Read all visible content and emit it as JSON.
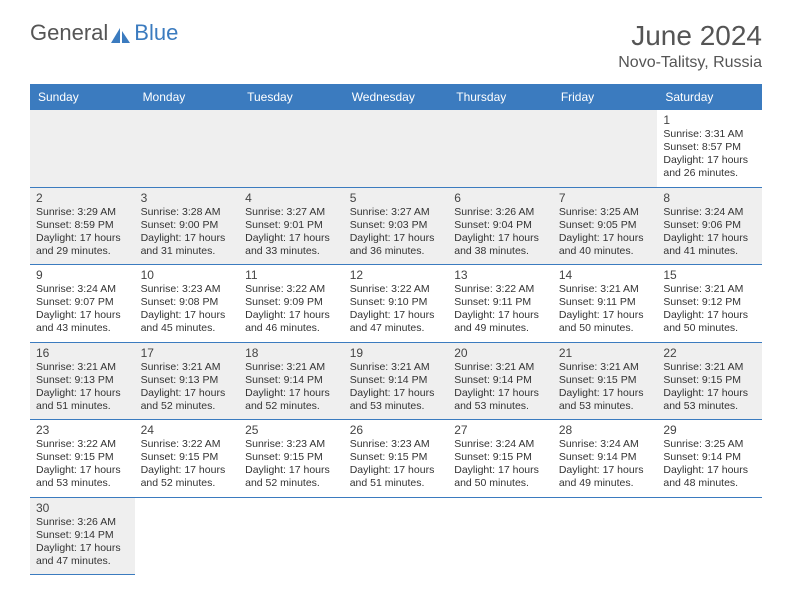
{
  "brand": {
    "part1": "General",
    "part2": "Blue"
  },
  "title": "June 2024",
  "location": "Novo-Talitsy, Russia",
  "colors": {
    "header_bg": "#3b7bbf",
    "header_text": "#ffffff",
    "shaded_bg": "#efefef",
    "border": "#3b7bbf",
    "text": "#333333"
  },
  "weekdays": [
    "Sunday",
    "Monday",
    "Tuesday",
    "Wednesday",
    "Thursday",
    "Friday",
    "Saturday"
  ],
  "weeks": [
    [
      {
        "empty": true
      },
      {
        "empty": true
      },
      {
        "empty": true
      },
      {
        "empty": true
      },
      {
        "empty": true
      },
      {
        "empty": true
      },
      {
        "day": "1",
        "sunrise": "Sunrise: 3:31 AM",
        "sunset": "Sunset: 8:57 PM",
        "d1": "Daylight: 17 hours",
        "d2": "and 26 minutes."
      }
    ],
    [
      {
        "day": "2",
        "shaded": true,
        "sunrise": "Sunrise: 3:29 AM",
        "sunset": "Sunset: 8:59 PM",
        "d1": "Daylight: 17 hours",
        "d2": "and 29 minutes."
      },
      {
        "day": "3",
        "shaded": true,
        "sunrise": "Sunrise: 3:28 AM",
        "sunset": "Sunset: 9:00 PM",
        "d1": "Daylight: 17 hours",
        "d2": "and 31 minutes."
      },
      {
        "day": "4",
        "shaded": true,
        "sunrise": "Sunrise: 3:27 AM",
        "sunset": "Sunset: 9:01 PM",
        "d1": "Daylight: 17 hours",
        "d2": "and 33 minutes."
      },
      {
        "day": "5",
        "shaded": true,
        "sunrise": "Sunrise: 3:27 AM",
        "sunset": "Sunset: 9:03 PM",
        "d1": "Daylight: 17 hours",
        "d2": "and 36 minutes."
      },
      {
        "day": "6",
        "shaded": true,
        "sunrise": "Sunrise: 3:26 AM",
        "sunset": "Sunset: 9:04 PM",
        "d1": "Daylight: 17 hours",
        "d2": "and 38 minutes."
      },
      {
        "day": "7",
        "shaded": true,
        "sunrise": "Sunrise: 3:25 AM",
        "sunset": "Sunset: 9:05 PM",
        "d1": "Daylight: 17 hours",
        "d2": "and 40 minutes."
      },
      {
        "day": "8",
        "shaded": true,
        "sunrise": "Sunrise: 3:24 AM",
        "sunset": "Sunset: 9:06 PM",
        "d1": "Daylight: 17 hours",
        "d2": "and 41 minutes."
      }
    ],
    [
      {
        "day": "9",
        "sunrise": "Sunrise: 3:24 AM",
        "sunset": "Sunset: 9:07 PM",
        "d1": "Daylight: 17 hours",
        "d2": "and 43 minutes."
      },
      {
        "day": "10",
        "sunrise": "Sunrise: 3:23 AM",
        "sunset": "Sunset: 9:08 PM",
        "d1": "Daylight: 17 hours",
        "d2": "and 45 minutes."
      },
      {
        "day": "11",
        "sunrise": "Sunrise: 3:22 AM",
        "sunset": "Sunset: 9:09 PM",
        "d1": "Daylight: 17 hours",
        "d2": "and 46 minutes."
      },
      {
        "day": "12",
        "sunrise": "Sunrise: 3:22 AM",
        "sunset": "Sunset: 9:10 PM",
        "d1": "Daylight: 17 hours",
        "d2": "and 47 minutes."
      },
      {
        "day": "13",
        "sunrise": "Sunrise: 3:22 AM",
        "sunset": "Sunset: 9:11 PM",
        "d1": "Daylight: 17 hours",
        "d2": "and 49 minutes."
      },
      {
        "day": "14",
        "sunrise": "Sunrise: 3:21 AM",
        "sunset": "Sunset: 9:11 PM",
        "d1": "Daylight: 17 hours",
        "d2": "and 50 minutes."
      },
      {
        "day": "15",
        "sunrise": "Sunrise: 3:21 AM",
        "sunset": "Sunset: 9:12 PM",
        "d1": "Daylight: 17 hours",
        "d2": "and 50 minutes."
      }
    ],
    [
      {
        "day": "16",
        "shaded": true,
        "sunrise": "Sunrise: 3:21 AM",
        "sunset": "Sunset: 9:13 PM",
        "d1": "Daylight: 17 hours",
        "d2": "and 51 minutes."
      },
      {
        "day": "17",
        "shaded": true,
        "sunrise": "Sunrise: 3:21 AM",
        "sunset": "Sunset: 9:13 PM",
        "d1": "Daylight: 17 hours",
        "d2": "and 52 minutes."
      },
      {
        "day": "18",
        "shaded": true,
        "sunrise": "Sunrise: 3:21 AM",
        "sunset": "Sunset: 9:14 PM",
        "d1": "Daylight: 17 hours",
        "d2": "and 52 minutes."
      },
      {
        "day": "19",
        "shaded": true,
        "sunrise": "Sunrise: 3:21 AM",
        "sunset": "Sunset: 9:14 PM",
        "d1": "Daylight: 17 hours",
        "d2": "and 53 minutes."
      },
      {
        "day": "20",
        "shaded": true,
        "sunrise": "Sunrise: 3:21 AM",
        "sunset": "Sunset: 9:14 PM",
        "d1": "Daylight: 17 hours",
        "d2": "and 53 minutes."
      },
      {
        "day": "21",
        "shaded": true,
        "sunrise": "Sunrise: 3:21 AM",
        "sunset": "Sunset: 9:15 PM",
        "d1": "Daylight: 17 hours",
        "d2": "and 53 minutes."
      },
      {
        "day": "22",
        "shaded": true,
        "sunrise": "Sunrise: 3:21 AM",
        "sunset": "Sunset: 9:15 PM",
        "d1": "Daylight: 17 hours",
        "d2": "and 53 minutes."
      }
    ],
    [
      {
        "day": "23",
        "sunrise": "Sunrise: 3:22 AM",
        "sunset": "Sunset: 9:15 PM",
        "d1": "Daylight: 17 hours",
        "d2": "and 53 minutes."
      },
      {
        "day": "24",
        "sunrise": "Sunrise: 3:22 AM",
        "sunset": "Sunset: 9:15 PM",
        "d1": "Daylight: 17 hours",
        "d2": "and 52 minutes."
      },
      {
        "day": "25",
        "sunrise": "Sunrise: 3:23 AM",
        "sunset": "Sunset: 9:15 PM",
        "d1": "Daylight: 17 hours",
        "d2": "and 52 minutes."
      },
      {
        "day": "26",
        "sunrise": "Sunrise: 3:23 AM",
        "sunset": "Sunset: 9:15 PM",
        "d1": "Daylight: 17 hours",
        "d2": "and 51 minutes."
      },
      {
        "day": "27",
        "sunrise": "Sunrise: 3:24 AM",
        "sunset": "Sunset: 9:15 PM",
        "d1": "Daylight: 17 hours",
        "d2": "and 50 minutes."
      },
      {
        "day": "28",
        "sunrise": "Sunrise: 3:24 AM",
        "sunset": "Sunset: 9:14 PM",
        "d1": "Daylight: 17 hours",
        "d2": "and 49 minutes."
      },
      {
        "day": "29",
        "sunrise": "Sunrise: 3:25 AM",
        "sunset": "Sunset: 9:14 PM",
        "d1": "Daylight: 17 hours",
        "d2": "and 48 minutes."
      }
    ],
    [
      {
        "day": "30",
        "shaded": true,
        "sunrise": "Sunrise: 3:26 AM",
        "sunset": "Sunset: 9:14 PM",
        "d1": "Daylight: 17 hours",
        "d2": "and 47 minutes."
      },
      {
        "blank": true
      },
      {
        "blank": true
      },
      {
        "blank": true
      },
      {
        "blank": true
      },
      {
        "blank": true
      },
      {
        "blank": true
      }
    ]
  ]
}
